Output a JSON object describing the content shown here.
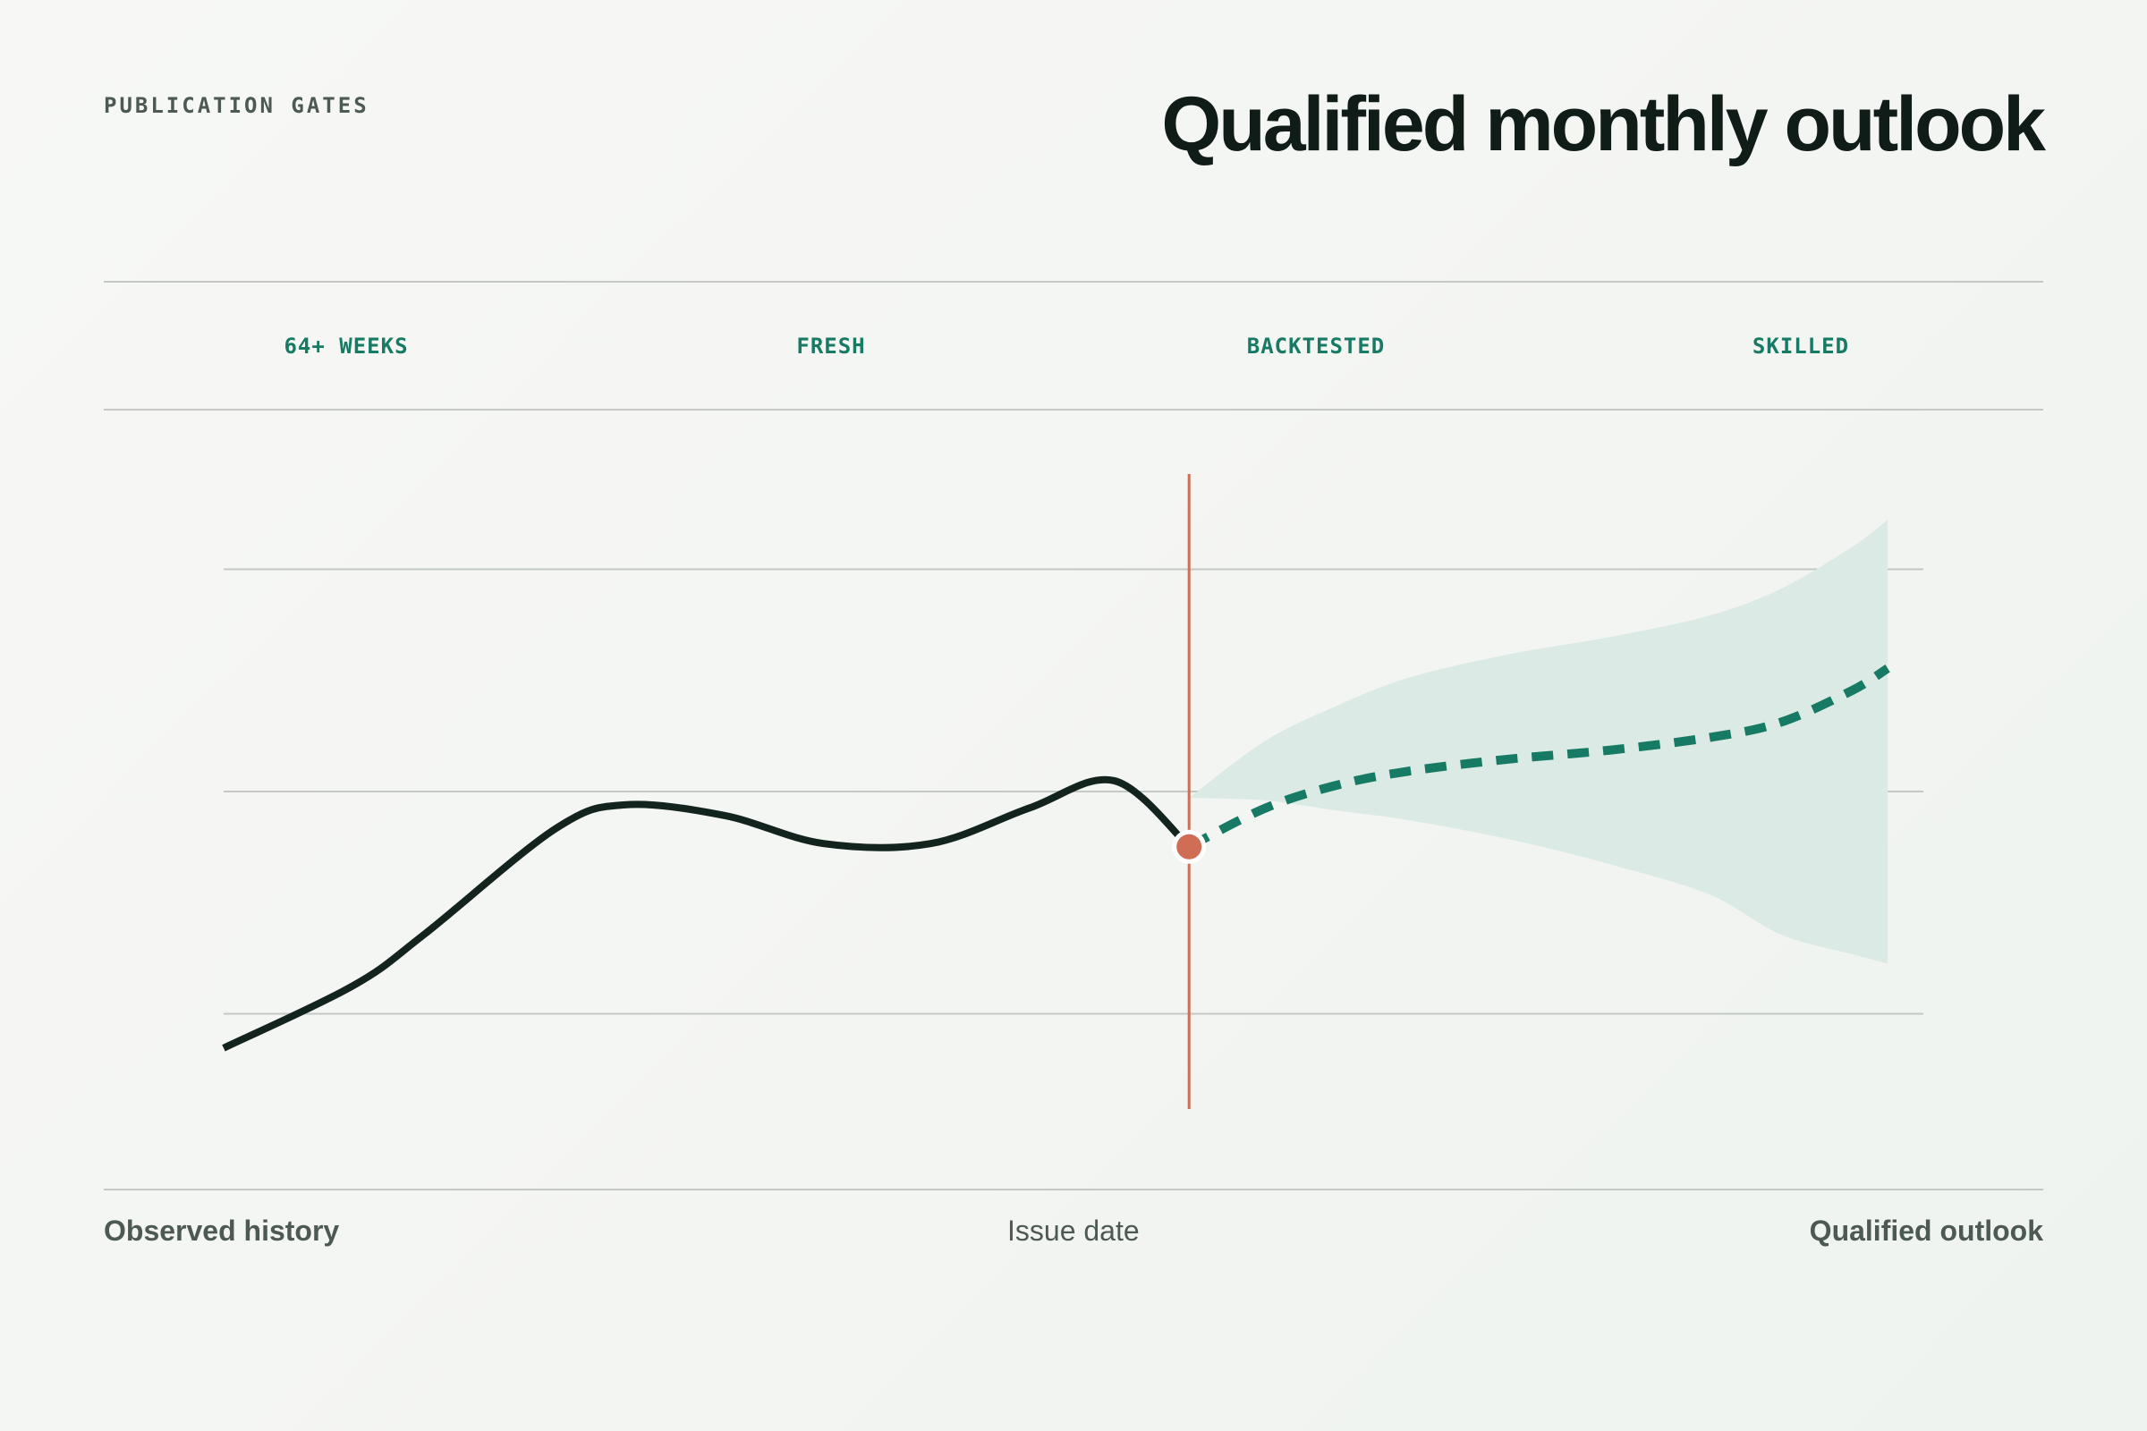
{
  "header": {
    "eyebrow": "PUBLICATION GATES",
    "title": "Qualified monthly outlook"
  },
  "gates": [
    "64+ WEEKS",
    "FRESH",
    "BACKTESTED",
    "SKILLED"
  ],
  "footer": {
    "left": "Observed history",
    "center": "Issue date",
    "right": "Qualified outlook"
  },
  "colors": {
    "history": "#13231d",
    "forecast": "#177a64",
    "band": "#dbeae4",
    "issue_marker": "#cf6d55",
    "grid": "#c4c9c6"
  },
  "chart_data": {
    "type": "line",
    "title": "Qualified monthly outlook",
    "xlabel": "",
    "ylabel": "",
    "xlim": [
      0,
      100
    ],
    "ylim": [
      0,
      100
    ],
    "gridlines_y": [
      15,
      50,
      85
    ],
    "grid": true,
    "issue_x": 56.8,
    "series": [
      {
        "style": "solid",
        "x": [
          0,
          7.6,
          11.8,
          19.5,
          23.6,
          29.5,
          35.3,
          41.6,
          47.4,
          52.4,
          56.8
        ],
        "y": [
          9.6,
          19.4,
          27.5,
          44.1,
          47.9,
          46.2,
          41.8,
          41.8,
          47.4,
          51.7,
          41.3
        ]
      },
      {
        "style": "dashed",
        "x": [
          56.8,
          61.3,
          65.5,
          69.7,
          75.6,
          81.5,
          87.4,
          91.6,
          95.8,
          97.9
        ],
        "y": [
          41.3,
          47.4,
          51.0,
          53.2,
          55.1,
          56.5,
          58.5,
          60.9,
          65.9,
          69.4
        ],
        "band_lower": [
          49,
          48.6,
          47.0,
          45.5,
          42.5,
          38.6,
          33.8,
          27.5,
          24.4,
          22.9
        ],
        "band_upper": [
          49,
          58,
          63.5,
          67.9,
          71.6,
          74.3,
          77.7,
          81.9,
          88.5,
          92.8
        ]
      }
    ]
  }
}
